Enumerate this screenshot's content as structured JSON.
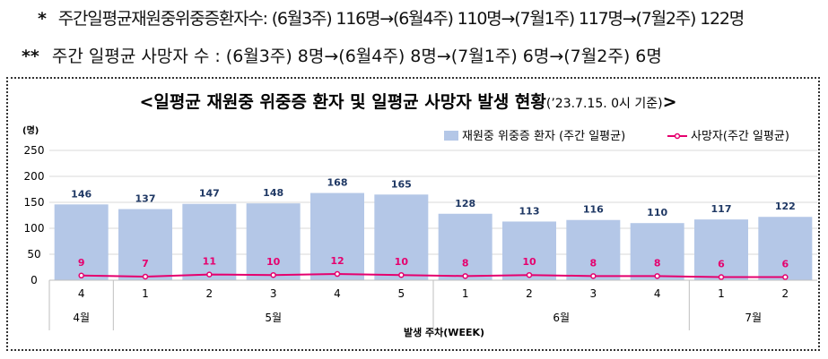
{
  "notes": [
    {
      "mark": "*",
      "text": "주간일평균재원중위중증환자수: (6월3주) 116명→(6월4주) 110명→(7월1주) 117명→(7월2주) 122명"
    },
    {
      "mark": "**",
      "text": "주간 일평균 사망자 수 :   (6월3주) 8명→(6월4주) 8명→(7월1주) 6명→(7월2주) 6명"
    }
  ],
  "chart_data": {
    "type": "bar",
    "title": "<일평균 재원중 위중증 환자 및 일평균 사망자 발생 현황",
    "title_date": "(’23.7.15. 0시 기준)",
    "title_close": ">",
    "ylabel": "(명)",
    "xlabel": "발생 주차(WEEK)",
    "ylim": [
      0,
      250
    ],
    "yticks": [
      0,
      50,
      100,
      150,
      200,
      250
    ],
    "grid": true,
    "legend_position": "top-right",
    "categories": [
      "4",
      "1",
      "2",
      "3",
      "4",
      "5",
      "1",
      "2",
      "3",
      "4",
      "1",
      "2"
    ],
    "month_groups": [
      {
        "label": "4월",
        "start": 0,
        "end": 0
      },
      {
        "label": "5월",
        "start": 1,
        "end": 5
      },
      {
        "label": "6월",
        "start": 6,
        "end": 9
      },
      {
        "label": "7월",
        "start": 10,
        "end": 11
      }
    ],
    "series": [
      {
        "name": "재원중 위중증 환자 (주간 일평균)",
        "type": "bar",
        "color": "#b4c7e7",
        "values": [
          146,
          137,
          147,
          148,
          168,
          165,
          128,
          113,
          116,
          110,
          117,
          122
        ]
      },
      {
        "name": "사망자(주간 일평균)",
        "type": "line",
        "color": "#e5006e",
        "values": [
          9,
          7,
          11,
          10,
          12,
          10,
          8,
          10,
          8,
          8,
          6,
          6
        ]
      }
    ]
  }
}
